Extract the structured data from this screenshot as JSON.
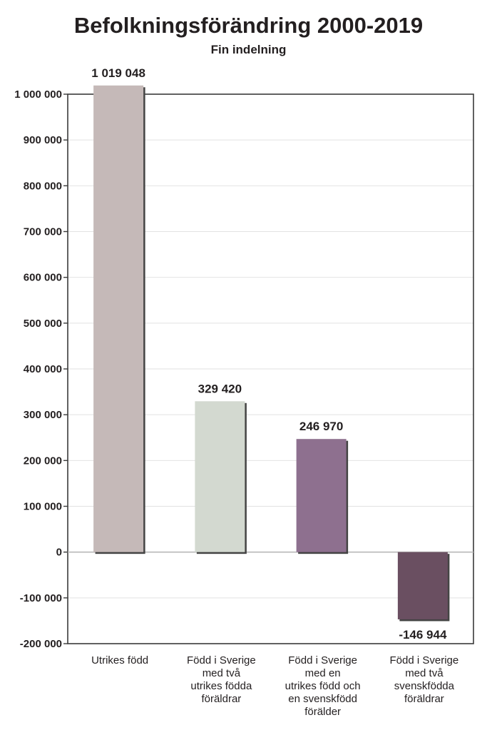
{
  "chart_data": {
    "type": "bar",
    "title": "Befolkningsförändring 2000-2019",
    "subtitle": "Fin indelning",
    "xlabel": "",
    "ylabel": "",
    "ylim": [
      -200000,
      1000000
    ],
    "yticks": [
      1000000,
      900000,
      800000,
      700000,
      600000,
      500000,
      400000,
      300000,
      200000,
      100000,
      0,
      -100000,
      -200000
    ],
    "ytick_labels": [
      "1 000 000",
      "900 000",
      "800 000",
      "700 000",
      "600 000",
      "500 000",
      "400 000",
      "300 000",
      "200 000",
      "100 000",
      "0",
      "-100 000",
      "-200 000"
    ],
    "grid": true,
    "categories": [
      [
        "Utrikes född"
      ],
      [
        "Född i Sverige",
        "med två",
        "utrikes födda",
        "föräldrar"
      ],
      [
        "Född i Sverige",
        "med en",
        "utrikes född och",
        "en svenskfödd",
        "förälder"
      ],
      [
        "Född i Sverige",
        "med två",
        "svenskfödda",
        "föräldrar"
      ]
    ],
    "values": [
      1019048,
      329420,
      246970,
      -146944
    ],
    "value_labels": [
      "1 019 048",
      "329 420",
      "246 970",
      "-146 944"
    ],
    "colors": [
      "#c5b9b8",
      "#d3d9d0",
      "#8e708f",
      "#6a4f61"
    ]
  }
}
